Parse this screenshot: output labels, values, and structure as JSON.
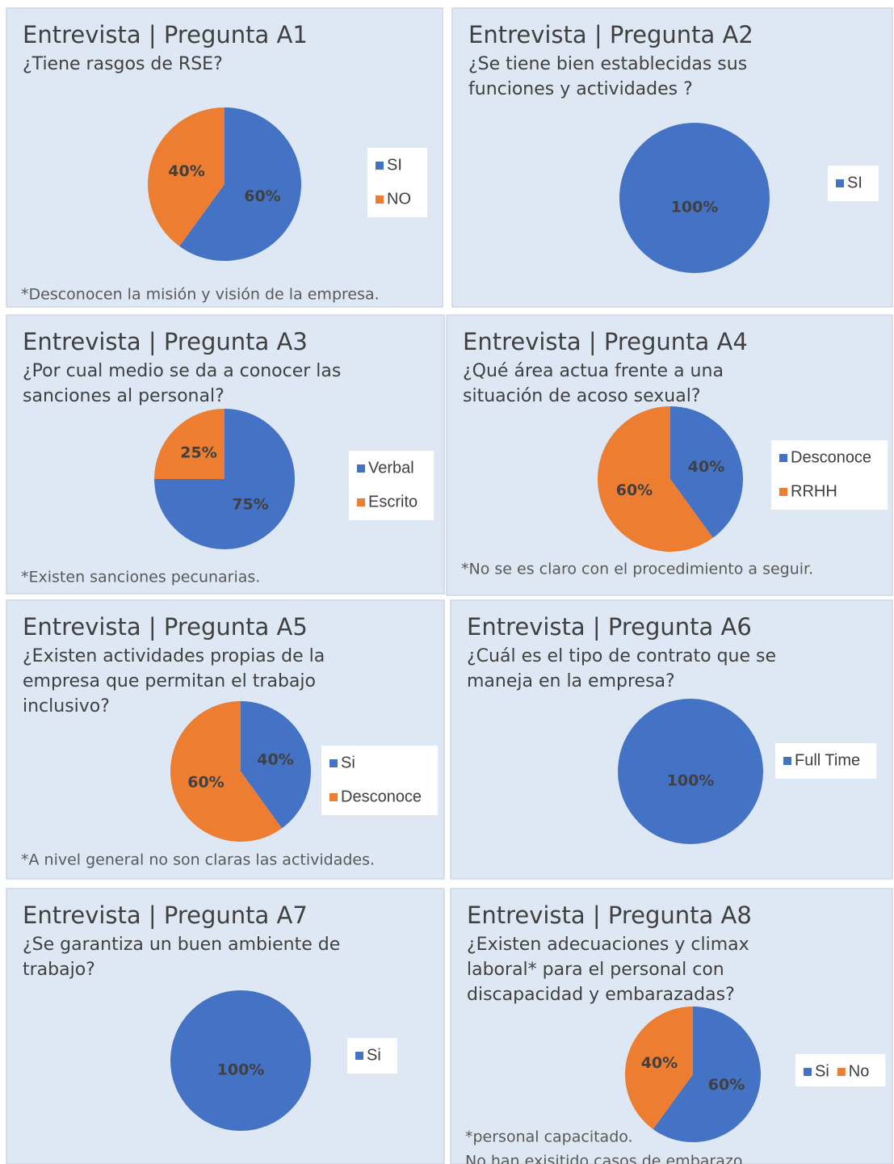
{
  "chart_data": [
    {
      "type": "pie",
      "title": "Entrevista | Pregunta A1",
      "question": [
        "¿Tiene rasgos de RSE?"
      ],
      "categories": [
        "SI",
        "NO"
      ],
      "values": [
        60,
        40
      ],
      "value_labels": [
        "60%",
        "40%"
      ],
      "colors": [
        "#4472c4",
        "#ed7d31"
      ],
      "notes": [
        "*Desconocen la misión y visión de la empresa."
      ]
    },
    {
      "type": "pie",
      "title": "Entrevista | Pregunta A2",
      "question": [
        "¿Se tiene bien establecidas sus",
        "funciones y actividades ?"
      ],
      "categories": [
        "SI"
      ],
      "values": [
        100
      ],
      "value_labels": [
        "100%"
      ],
      "colors": [
        "#4472c4"
      ]
    },
    {
      "type": "pie",
      "title": "Entrevista | Pregunta A3",
      "question": [
        "¿Por cual medio se da a conocer las",
        "sanciones al personal?"
      ],
      "categories": [
        "Verbal",
        "Escrito"
      ],
      "values": [
        75,
        25
      ],
      "value_labels": [
        "75%",
        "25%"
      ],
      "colors": [
        "#4472c4",
        "#ed7d31"
      ],
      "notes": [
        "*Existen sanciones pecunarias."
      ]
    },
    {
      "type": "pie",
      "title": "Entrevista | Pregunta A4",
      "question": [
        "¿Qué área actua frente a una",
        "situación de acoso sexual?"
      ],
      "categories": [
        "Desconoce",
        "RRHH"
      ],
      "values": [
        40,
        60
      ],
      "value_labels": [
        "40%",
        "60%"
      ],
      "colors": [
        "#4472c4",
        "#ed7d31"
      ],
      "notes": [
        "*No se es claro con el procedimiento a seguir."
      ]
    },
    {
      "type": "pie",
      "title": "Entrevista | Pregunta A5",
      "question": [
        "¿Existen actividades propias de la",
        "empresa que permitan el trabajo",
        "inclusivo?"
      ],
      "categories": [
        "Si",
        "Desconoce"
      ],
      "values": [
        40,
        60
      ],
      "value_labels": [
        "40%",
        "60%"
      ],
      "colors": [
        "#4472c4",
        "#ed7d31"
      ],
      "notes": [
        "*A nivel general no son claras las actividades."
      ]
    },
    {
      "type": "pie",
      "title": "Entrevista | Pregunta A6",
      "question": [
        "¿Cuál es el tipo de contrato que se",
        "maneja en la empresa?"
      ],
      "categories": [
        "Full Time"
      ],
      "values": [
        100
      ],
      "value_labels": [
        "100%"
      ],
      "colors": [
        "#4472c4"
      ]
    },
    {
      "type": "pie",
      "title": "Entrevista | Pregunta A7",
      "question": [
        "¿Se garantiza un buen ambiente de",
        "trabajo?"
      ],
      "categories": [
        "Si"
      ],
      "values": [
        100
      ],
      "value_labels": [
        "100%"
      ],
      "colors": [
        "#4472c4"
      ]
    },
    {
      "type": "pie",
      "title": "Entrevista | Pregunta A8",
      "question": [
        "¿Existen adecuaciones y climax",
        "laboral* para el personal con",
        "discapacidad y embarazadas?"
      ],
      "categories": [
        "Si",
        "No"
      ],
      "values": [
        60,
        40
      ],
      "value_labels": [
        "60%",
        "40%"
      ],
      "colors": [
        "#4472c4",
        "#ed7d31"
      ],
      "notes": [
        "*personal capacitado.",
        "No han exisitido casos de embarazo"
      ]
    }
  ]
}
